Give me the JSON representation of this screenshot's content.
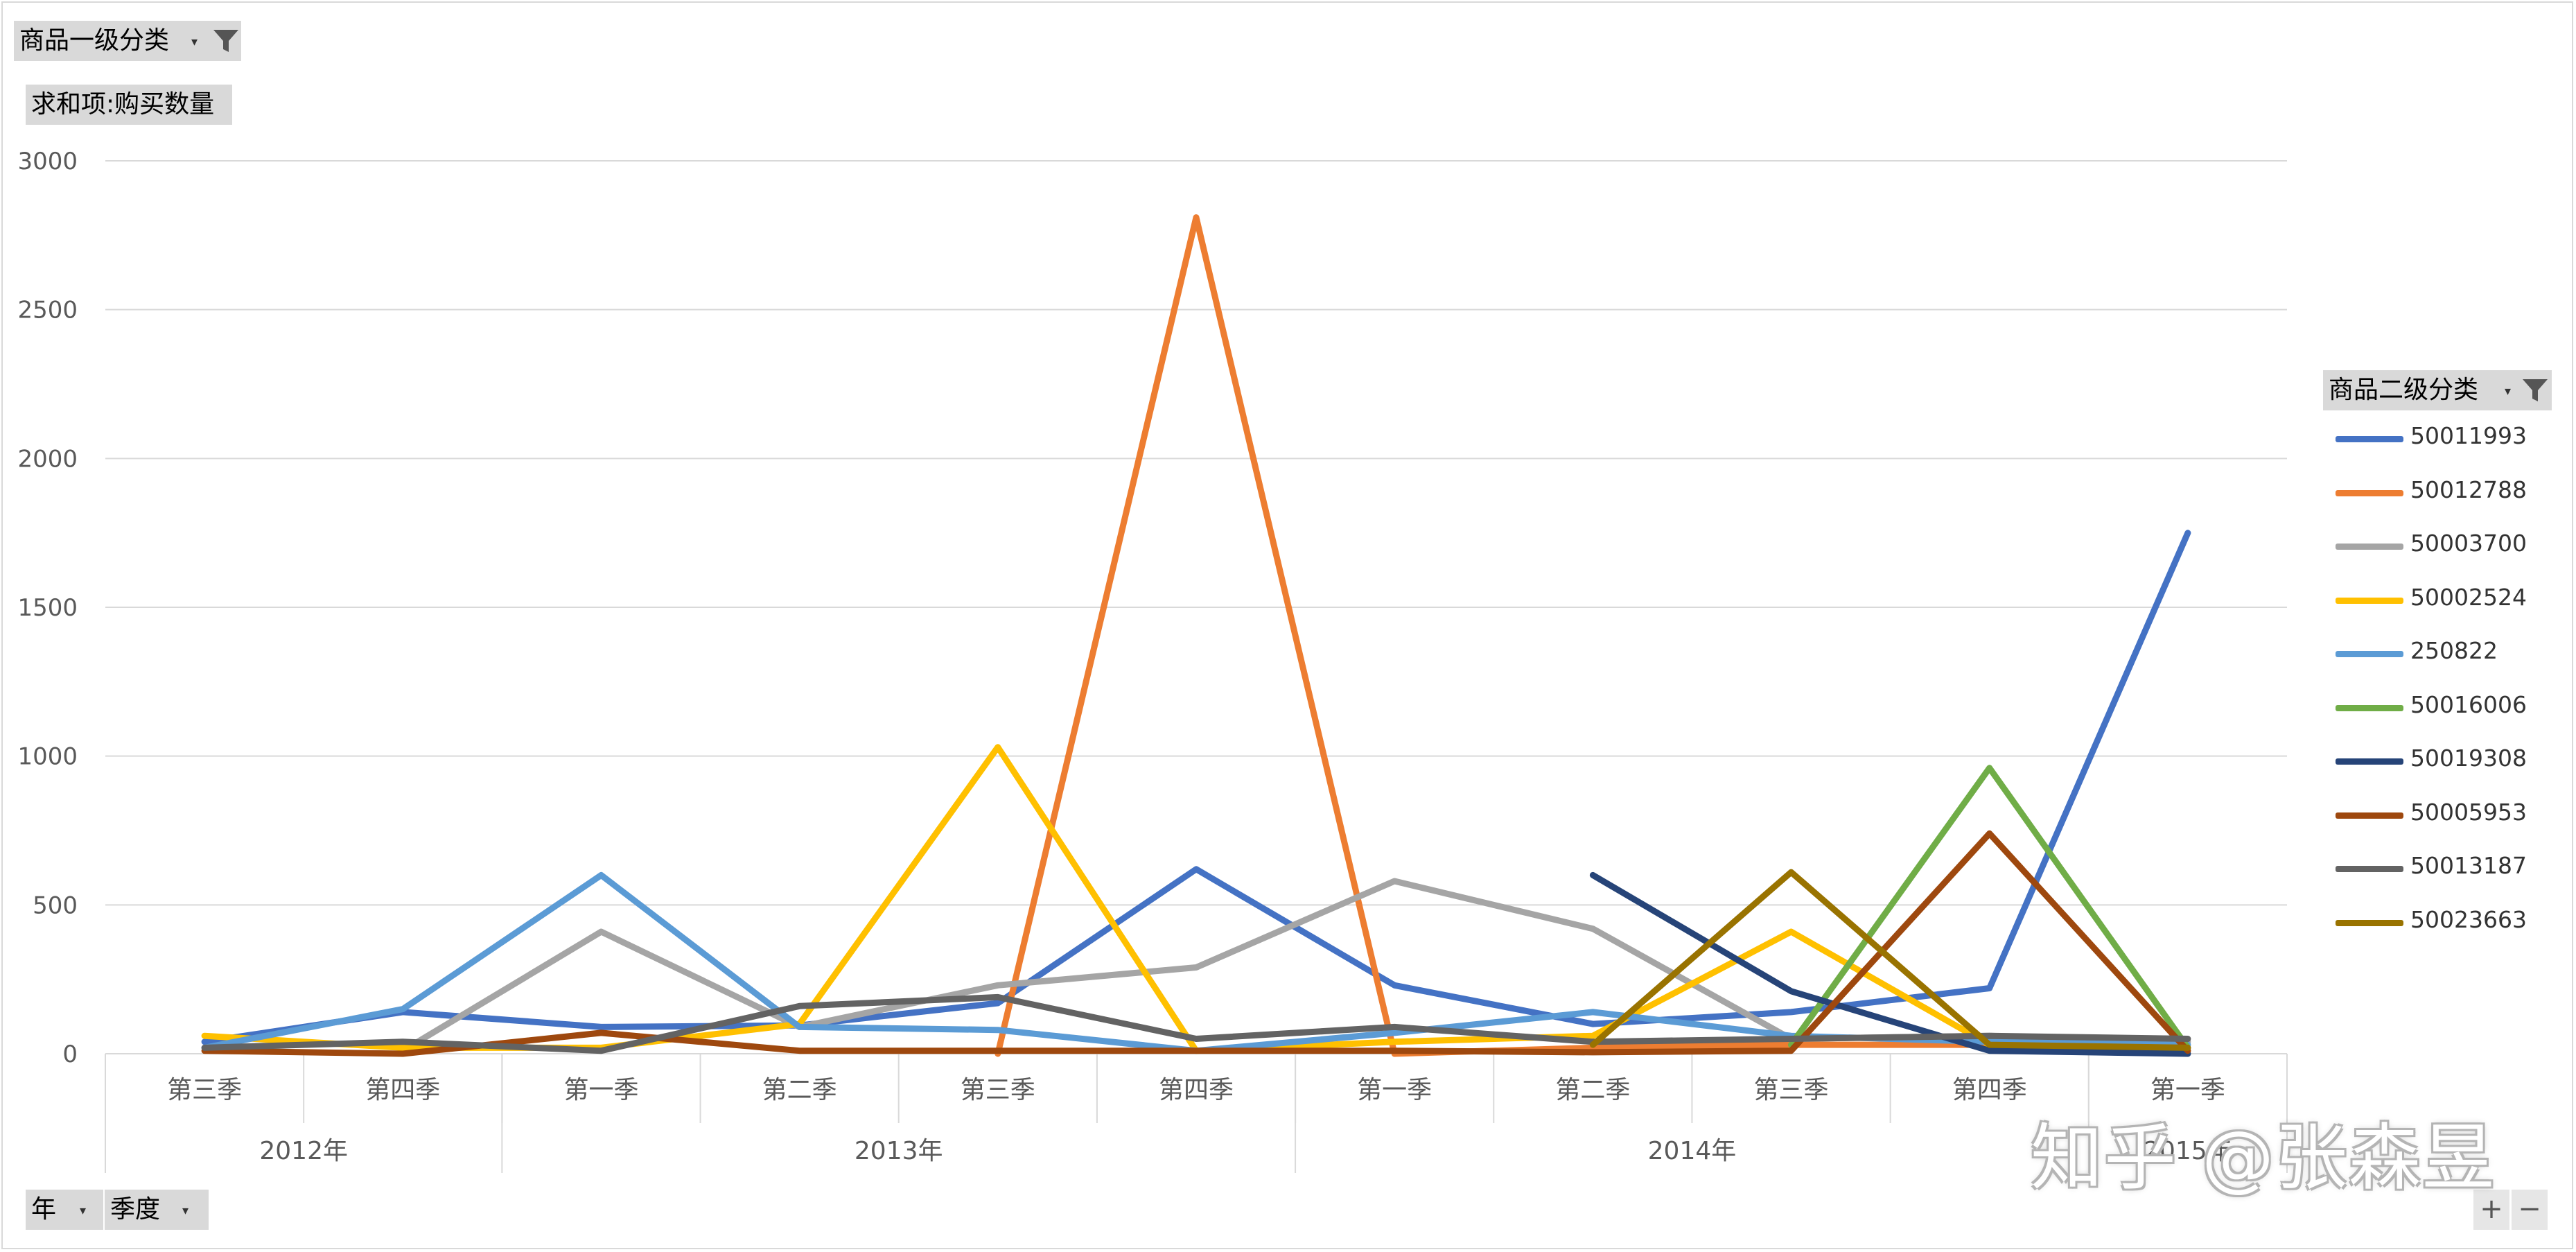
{
  "filters": {
    "level1_label": "商品一级分类",
    "measure_label": "求和项:购买数量",
    "level2_label": "商品二级分类",
    "axis_field_year": "年",
    "axis_field_quarter": "季度",
    "dropdown_glyph": "▾",
    "plus": "+",
    "minus": "−"
  },
  "watermark": "知乎 @张森昱",
  "chart_data": {
    "type": "line",
    "title": "",
    "xlabel": "",
    "ylabel": "",
    "ylim": [
      0,
      3000
    ],
    "yticks": [
      0,
      500,
      1000,
      1500,
      2000,
      2500,
      3000
    ],
    "grid": true,
    "legend_position": "right",
    "categories": [
      "第三季",
      "第四季",
      "第一季",
      "第二季",
      "第三季",
      "第四季",
      "第一季",
      "第二季",
      "第三季",
      "第四季",
      "第一季"
    ],
    "years": [
      {
        "label": "2012年",
        "span": 2
      },
      {
        "label": "2013年",
        "span": 4
      },
      {
        "label": "2014年",
        "span": 4
      },
      {
        "label": "2015年",
        "span": 1
      }
    ],
    "series": [
      {
        "name": "50011993",
        "color": "#4472C4",
        "values": [
          40,
          140,
          90,
          95,
          170,
          620,
          230,
          100,
          140,
          220,
          1750
        ]
      },
      {
        "name": "50012788",
        "color": "#ED7D31",
        "values": [
          null,
          null,
          null,
          null,
          0,
          2810,
          0,
          20,
          30,
          30,
          10
        ]
      },
      {
        "name": "50003700",
        "color": "#A5A5A5",
        "values": [
          null,
          10,
          410,
          90,
          230,
          290,
          580,
          420,
          50,
          60,
          40
        ]
      },
      {
        "name": "50002524",
        "color": "#FFC000",
        "values": [
          60,
          20,
          20,
          100,
          1030,
          10,
          40,
          60,
          410,
          30,
          20
        ]
      },
      {
        "name": "250822",
        "color": "#5B9BD5",
        "values": [
          20,
          150,
          600,
          90,
          80,
          10,
          70,
          140,
          60,
          40,
          30
        ]
      },
      {
        "name": "50016006",
        "color": "#70AD47",
        "values": [
          null,
          null,
          null,
          null,
          null,
          null,
          null,
          null,
          30,
          960,
          20
        ]
      },
      {
        "name": "50019308",
        "color": "#264478",
        "values": [
          null,
          null,
          null,
          null,
          null,
          null,
          null,
          600,
          210,
          10,
          0
        ]
      },
      {
        "name": "50005953",
        "color": "#9E480E",
        "values": [
          10,
          0,
          70,
          10,
          10,
          10,
          10,
          5,
          10,
          740,
          10
        ]
      },
      {
        "name": "50013187",
        "color": "#636363",
        "values": [
          20,
          40,
          10,
          160,
          190,
          50,
          90,
          40,
          50,
          60,
          50
        ]
      },
      {
        "name": "50023663",
        "color": "#997300",
        "values": [
          null,
          null,
          null,
          null,
          null,
          null,
          null,
          30,
          610,
          30,
          20
        ]
      }
    ]
  }
}
